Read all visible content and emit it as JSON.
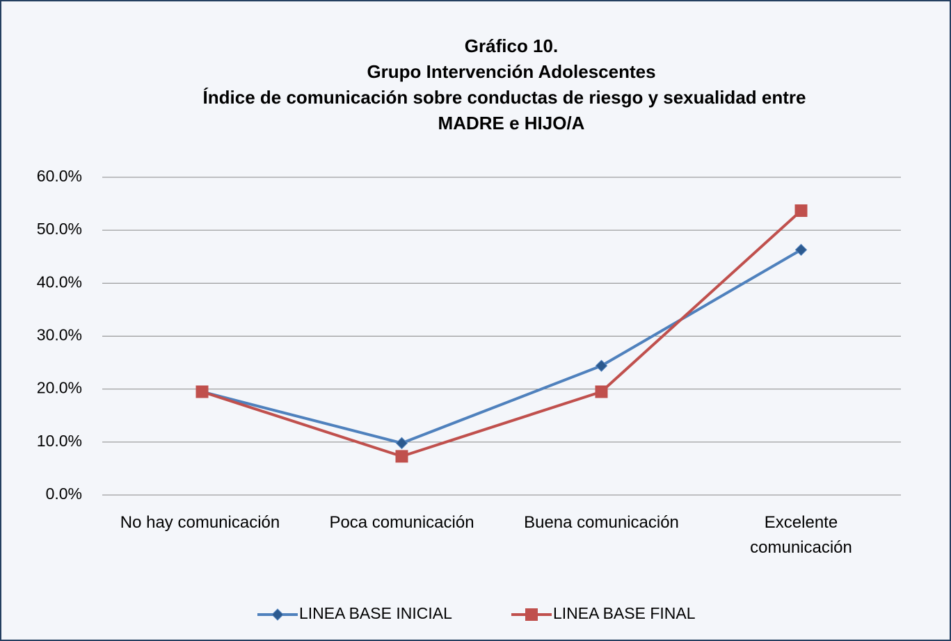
{
  "chart_data": {
    "type": "line",
    "title": [
      "Gráfico 10.",
      "Grupo Intervención Adolescentes",
      "Índice de comunicación sobre conductas de riesgo y sexualidad  entre",
      "MADRE e HIJO/A"
    ],
    "categories": [
      "No hay comunicación",
      "Poca comunicación",
      "Buena comunicación",
      "Excelente comunicación"
    ],
    "series": [
      {
        "name": "LINEA BASE INICIAL",
        "color": "#4f81bd",
        "marker": "diamond",
        "values": [
          19.5,
          9.8,
          24.4,
          46.3
        ]
      },
      {
        "name": "LINEA BASE FINAL",
        "color": "#c0504d",
        "marker": "square",
        "values": [
          19.5,
          7.3,
          19.5,
          53.7
        ]
      }
    ],
    "ylim": [
      0,
      60
    ],
    "yticks": [
      {
        "value": 0,
        "label": "0.0%"
      },
      {
        "value": 10,
        "label": "10.0%"
      },
      {
        "value": 20,
        "label": "20.0%"
      },
      {
        "value": 30,
        "label": "30.0%"
      },
      {
        "value": 40,
        "label": "40.0%"
      },
      {
        "value": 50,
        "label": "50.0%"
      },
      {
        "value": 60,
        "label": "60.0%"
      }
    ],
    "grid": true,
    "legend": "bottom"
  }
}
